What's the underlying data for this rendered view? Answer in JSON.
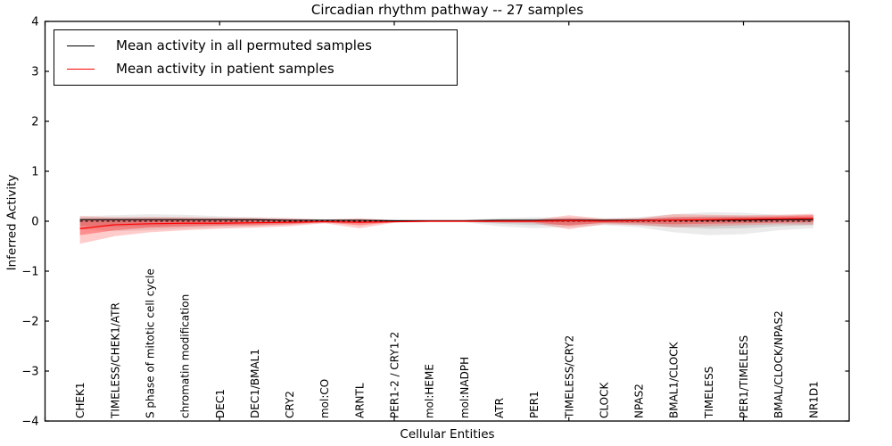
{
  "window": {
    "background": "#ffffff"
  },
  "chart_data": {
    "type": "line",
    "title": "Circadian rhythm pathway -- 27 samples",
    "xlabel": "Cellular Entities",
    "ylabel": "Inferred Activity",
    "ylim": [
      -4,
      4
    ],
    "xlim": [
      0,
      23
    ],
    "grid": false,
    "legend_position": "upper left",
    "y_ticks": [
      -4,
      -3,
      -2,
      -1,
      0,
      1,
      2,
      3,
      4
    ],
    "y_tick_labels": [
      "−4",
      "−3",
      "−2",
      "−1",
      "0",
      "1",
      "2",
      "3",
      "4"
    ],
    "x_numeric_ticks": [
      0,
      5,
      10,
      15,
      20
    ],
    "categories": [
      "CHEK1",
      "TIMELESS/CHEK1/ATR",
      "S phase of mitotic cell cycle",
      "chromatin modification",
      "DEC1",
      "DEC1/BMAL1",
      "CRY2",
      "mol:CO",
      "ARNTL",
      "PER1-2 / CRY1-2",
      "mol:HEME",
      "mol:NADPH",
      "ATR",
      "PER1",
      "TIMELESS/CRY2",
      "CLOCK",
      "NPAS2",
      "BMAL1/CLOCK",
      "TIMELESS",
      "PER1/TIMELESS",
      "BMAL/CLOCK/NPAS2",
      "NR1D1"
    ],
    "baseline": {
      "value": 0.0,
      "style": "dashed",
      "color": "#000000"
    },
    "series": [
      {
        "name": "Mean activity in all permuted samples",
        "color": "#000000",
        "band_color_outer": "rgba(130,130,130,0.16)",
        "band_color_inner": "rgba(130,130,130,0.24)",
        "values": [
          0.03,
          0.03,
          0.03,
          0.03,
          0.03,
          0.03,
          0.02,
          0.02,
          0.02,
          0.01,
          0.01,
          0.01,
          0.02,
          0.02,
          0.02,
          0.02,
          0.02,
          0.02,
          0.02,
          0.02,
          0.03,
          0.03
        ],
        "band_outer_lo": [
          -0.16,
          -0.2,
          -0.18,
          -0.15,
          -0.12,
          -0.1,
          -0.07,
          -0.04,
          -0.05,
          -0.03,
          -0.02,
          -0.02,
          -0.1,
          -0.14,
          -0.12,
          -0.08,
          -0.12,
          -0.22,
          -0.28,
          -0.26,
          -0.18,
          -0.14
        ],
        "band_outer_hi": [
          0.1,
          0.12,
          0.14,
          0.13,
          0.1,
          0.08,
          0.06,
          0.04,
          0.04,
          0.03,
          0.03,
          0.03,
          0.06,
          0.08,
          0.08,
          0.06,
          0.08,
          0.14,
          0.18,
          0.17,
          0.13,
          0.12
        ],
        "band_inner_lo": [
          -0.09,
          -0.11,
          -0.1,
          -0.08,
          -0.07,
          -0.06,
          -0.04,
          -0.02,
          -0.03,
          -0.02,
          -0.01,
          -0.01,
          -0.05,
          -0.08,
          -0.07,
          -0.04,
          -0.07,
          -0.12,
          -0.15,
          -0.14,
          -0.1,
          -0.08
        ],
        "band_inner_hi": [
          0.06,
          0.07,
          0.08,
          0.07,
          0.06,
          0.05,
          0.04,
          0.03,
          0.03,
          0.02,
          0.02,
          0.02,
          0.04,
          0.05,
          0.05,
          0.04,
          0.05,
          0.08,
          0.1,
          0.1,
          0.08,
          0.07
        ]
      },
      {
        "name": "Mean activity in patient samples",
        "color": "#ff0000",
        "band_color_outer": "rgba(255,0,0,0.20)",
        "band_color_inner": "rgba(255,0,0,0.30)",
        "values": [
          -0.15,
          -0.07,
          -0.05,
          -0.04,
          -0.04,
          -0.03,
          -0.02,
          -0.01,
          -0.02,
          -0.01,
          0.0,
          0.0,
          0.0,
          0.0,
          0.01,
          0.0,
          0.01,
          0.02,
          0.03,
          0.04,
          0.05,
          0.06
        ],
        "band_outer_lo": [
          -0.45,
          -0.3,
          -0.22,
          -0.18,
          -0.15,
          -0.13,
          -0.1,
          -0.04,
          -0.14,
          -0.03,
          -0.02,
          -0.02,
          -0.03,
          -0.04,
          -0.16,
          -0.06,
          -0.08,
          -0.12,
          -0.1,
          -0.08,
          -0.06,
          -0.07
        ],
        "band_outer_hi": [
          0.1,
          0.08,
          0.08,
          0.08,
          0.07,
          0.07,
          0.06,
          0.03,
          0.06,
          0.02,
          0.02,
          0.02,
          0.03,
          0.03,
          0.12,
          0.05,
          0.06,
          0.14,
          0.13,
          0.12,
          0.13,
          0.15
        ],
        "band_inner_lo": [
          -0.28,
          -0.18,
          -0.13,
          -0.11,
          -0.09,
          -0.08,
          -0.06,
          -0.02,
          -0.08,
          -0.02,
          -0.01,
          -0.01,
          -0.02,
          -0.02,
          -0.09,
          -0.03,
          -0.04,
          -0.06,
          -0.05,
          -0.04,
          -0.03,
          -0.02
        ],
        "band_inner_hi": [
          0.02,
          0.03,
          0.04,
          0.04,
          0.04,
          0.03,
          0.03,
          0.02,
          0.03,
          0.01,
          0.01,
          0.01,
          0.02,
          0.02,
          0.06,
          0.03,
          0.04,
          0.08,
          0.08,
          0.09,
          0.1,
          0.12
        ]
      }
    ]
  }
}
